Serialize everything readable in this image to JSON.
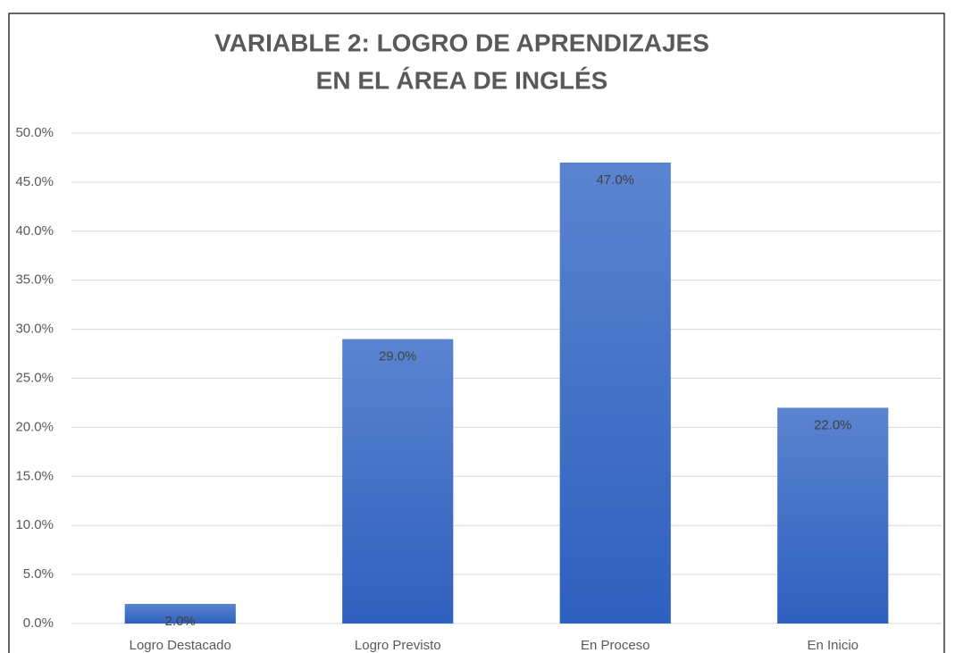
{
  "chart_data": {
    "type": "bar",
    "title": [
      "VARIABLE 2: LOGRO DE APRENDIZAJES",
      "EN EL ÁREA DE INGLÉS"
    ],
    "categories": [
      "Logro Destacado",
      "Logro Previsto",
      "En Proceso",
      "En Inicio"
    ],
    "values": [
      2,
      29,
      47,
      22
    ],
    "value_labels": [
      "2.0%",
      "29.0%",
      "47.0%",
      "22.0%"
    ],
    "color": "#4472c4",
    "ylim": [
      0,
      50
    ],
    "yticks": [
      {
        "value": 0,
        "label": "0.0%"
      },
      {
        "value": 5,
        "label": "5.0%"
      },
      {
        "value": 10,
        "label": "10.0%"
      },
      {
        "value": 15,
        "label": "15.0%"
      },
      {
        "value": 20,
        "label": "20.0%"
      },
      {
        "value": 25,
        "label": "25.0%"
      },
      {
        "value": 30,
        "label": "30.0%"
      },
      {
        "value": 35,
        "label": "35.0%"
      },
      {
        "value": 40,
        "label": "40.0%"
      },
      {
        "value": 45,
        "label": "45.0%"
      },
      {
        "value": 50,
        "label": "50.0%"
      }
    ],
    "grid": true
  }
}
